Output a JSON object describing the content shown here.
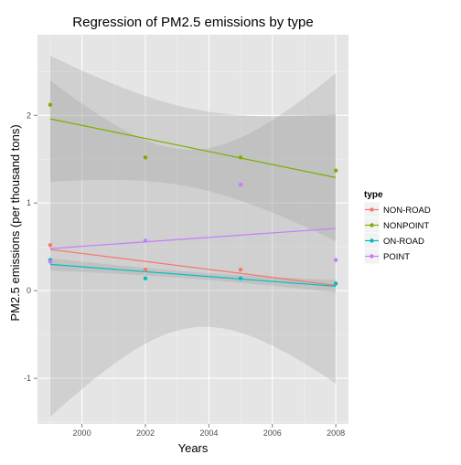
{
  "chart_data": {
    "type": "scatter",
    "title": "Regression of PM2.5 emissions by type",
    "xlabel": "Years",
    "ylabel": "PM2.5 emissions (per thousand tons)",
    "xlim": [
      1998.6,
      2008.4
    ],
    "ylim": [
      -1.52,
      2.92
    ],
    "xticks": [
      2000,
      2002,
      2004,
      2006,
      2008
    ],
    "yticks": [
      -1,
      0,
      1,
      2
    ],
    "grid": true,
    "legend": {
      "title": "type",
      "position": "right"
    },
    "series": [
      {
        "name": "NON-ROAD",
        "color": "#F8766D",
        "points": [
          [
            1999,
            0.52
          ],
          [
            2002,
            0.24
          ],
          [
            2005,
            0.24
          ],
          [
            2008,
            0.08
          ]
        ],
        "fit": [
          [
            1999,
            0.47
          ],
          [
            2008,
            0.06
          ]
        ]
      },
      {
        "name": "NONPOINT",
        "color": "#7CAE00",
        "points": [
          [
            1999,
            2.12
          ],
          [
            2002,
            1.52
          ],
          [
            2005,
            1.52
          ],
          [
            2008,
            1.37
          ]
        ],
        "fit": [
          [
            1999,
            1.96
          ],
          [
            2008,
            1.29
          ]
        ],
        "band": {
          "upper": [
            [
              1999,
              2.68
            ],
            [
              2008,
              2.01
            ]
          ],
          "lower": [
            [
              1999,
              1.24
            ],
            [
              2008,
              0.56
            ]
          ]
        }
      },
      {
        "name": "ON-ROAD",
        "color": "#00BFC4",
        "points": [
          [
            1999,
            0.35
          ],
          [
            2002,
            0.14
          ],
          [
            2005,
            0.14
          ],
          [
            2008,
            0.08
          ]
        ],
        "fit": [
          [
            1999,
            0.3
          ],
          [
            2008,
            0.05
          ]
        ],
        "band": {
          "upper": [
            [
              1999,
              0.37
            ],
            [
              2008,
              0.12
            ]
          ],
          "lower": [
            [
              1999,
              0.23
            ],
            [
              2008,
              -0.02
            ]
          ]
        }
      },
      {
        "name": "POINT",
        "color": "#C77CFF",
        "points": [
          [
            1999,
            0.33
          ],
          [
            2002,
            0.57
          ],
          [
            2005,
            1.21
          ],
          [
            2008,
            0.35
          ]
        ],
        "fit": [
          [
            1999,
            0.48
          ],
          [
            2008,
            0.71
          ]
        ],
        "band": {
          "upper": [
            [
              1999,
              2.52
            ],
            [
              2008,
              2.48
            ]
          ],
          "lower": [
            [
              1999,
              -1.32
            ],
            [
              2008,
              -1.06
            ]
          ]
        }
      }
    ]
  }
}
